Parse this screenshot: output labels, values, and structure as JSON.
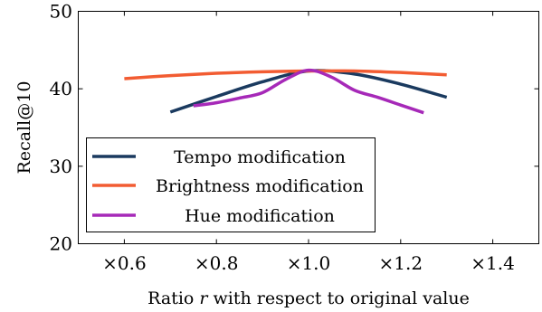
{
  "chart_data": {
    "type": "line",
    "xlabel_prefix": "Ratio ",
    "xlabel_var": "r",
    "xlabel_suffix": " with respect to original value",
    "ylabel": "Recall@10",
    "xlim": [
      0.5,
      1.5
    ],
    "ylim": [
      20,
      50
    ],
    "x_ticks": [
      {
        "value": 0.6,
        "label": "×0.6"
      },
      {
        "value": 0.8,
        "label": "×0.8"
      },
      {
        "value": 1.0,
        "label": "×1.0"
      },
      {
        "value": 1.2,
        "label": "×1.2"
      },
      {
        "value": 1.4,
        "label": "×1.4"
      }
    ],
    "y_ticks": [
      {
        "value": 20,
        "label": "20"
      },
      {
        "value": 30,
        "label": "30"
      },
      {
        "value": 40,
        "label": "40"
      },
      {
        "value": 50,
        "label": "50"
      }
    ],
    "grid": false,
    "legend_position": "bottom-left",
    "series": [
      {
        "name": "Tempo modification",
        "color": "#1a3a5f",
        "x": [
          0.7,
          0.8,
          0.9,
          1.0,
          1.1,
          1.2,
          1.3
        ],
        "y": [
          37.0,
          39.0,
          40.9,
          42.3,
          41.9,
          40.6,
          38.9
        ]
      },
      {
        "name": "Brightness modification",
        "color": "#f25c32",
        "x": [
          0.6,
          0.7,
          0.8,
          0.9,
          1.0,
          1.1,
          1.2,
          1.3
        ],
        "y": [
          41.3,
          41.7,
          42.0,
          42.2,
          42.3,
          42.3,
          42.1,
          41.8
        ]
      },
      {
        "name": "Hue modification",
        "color": "#a629b8",
        "x": [
          0.75,
          0.8,
          0.85,
          0.9,
          0.95,
          1.0,
          1.05,
          1.1,
          1.15,
          1.2,
          1.25
        ],
        "y": [
          37.8,
          38.2,
          38.8,
          39.5,
          41.2,
          42.4,
          41.5,
          39.8,
          38.9,
          37.9,
          36.9
        ]
      }
    ]
  }
}
